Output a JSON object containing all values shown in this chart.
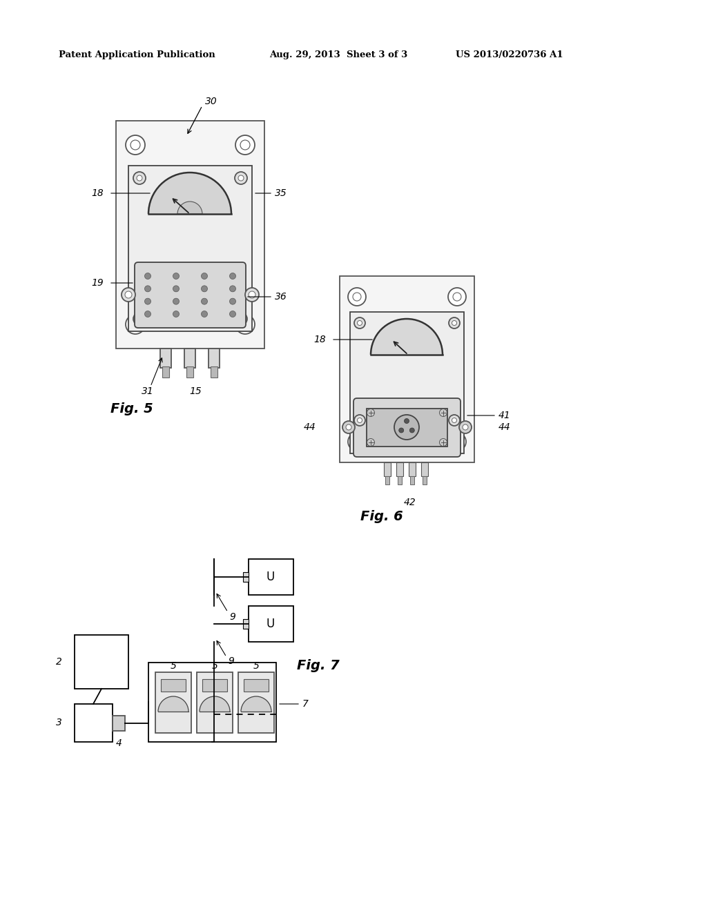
{
  "bg_color": "#ffffff",
  "header_left": "Patent Application Publication",
  "header_mid": "Aug. 29, 2013  Sheet 3 of 3",
  "header_right": "US 2013/0220736 A1"
}
